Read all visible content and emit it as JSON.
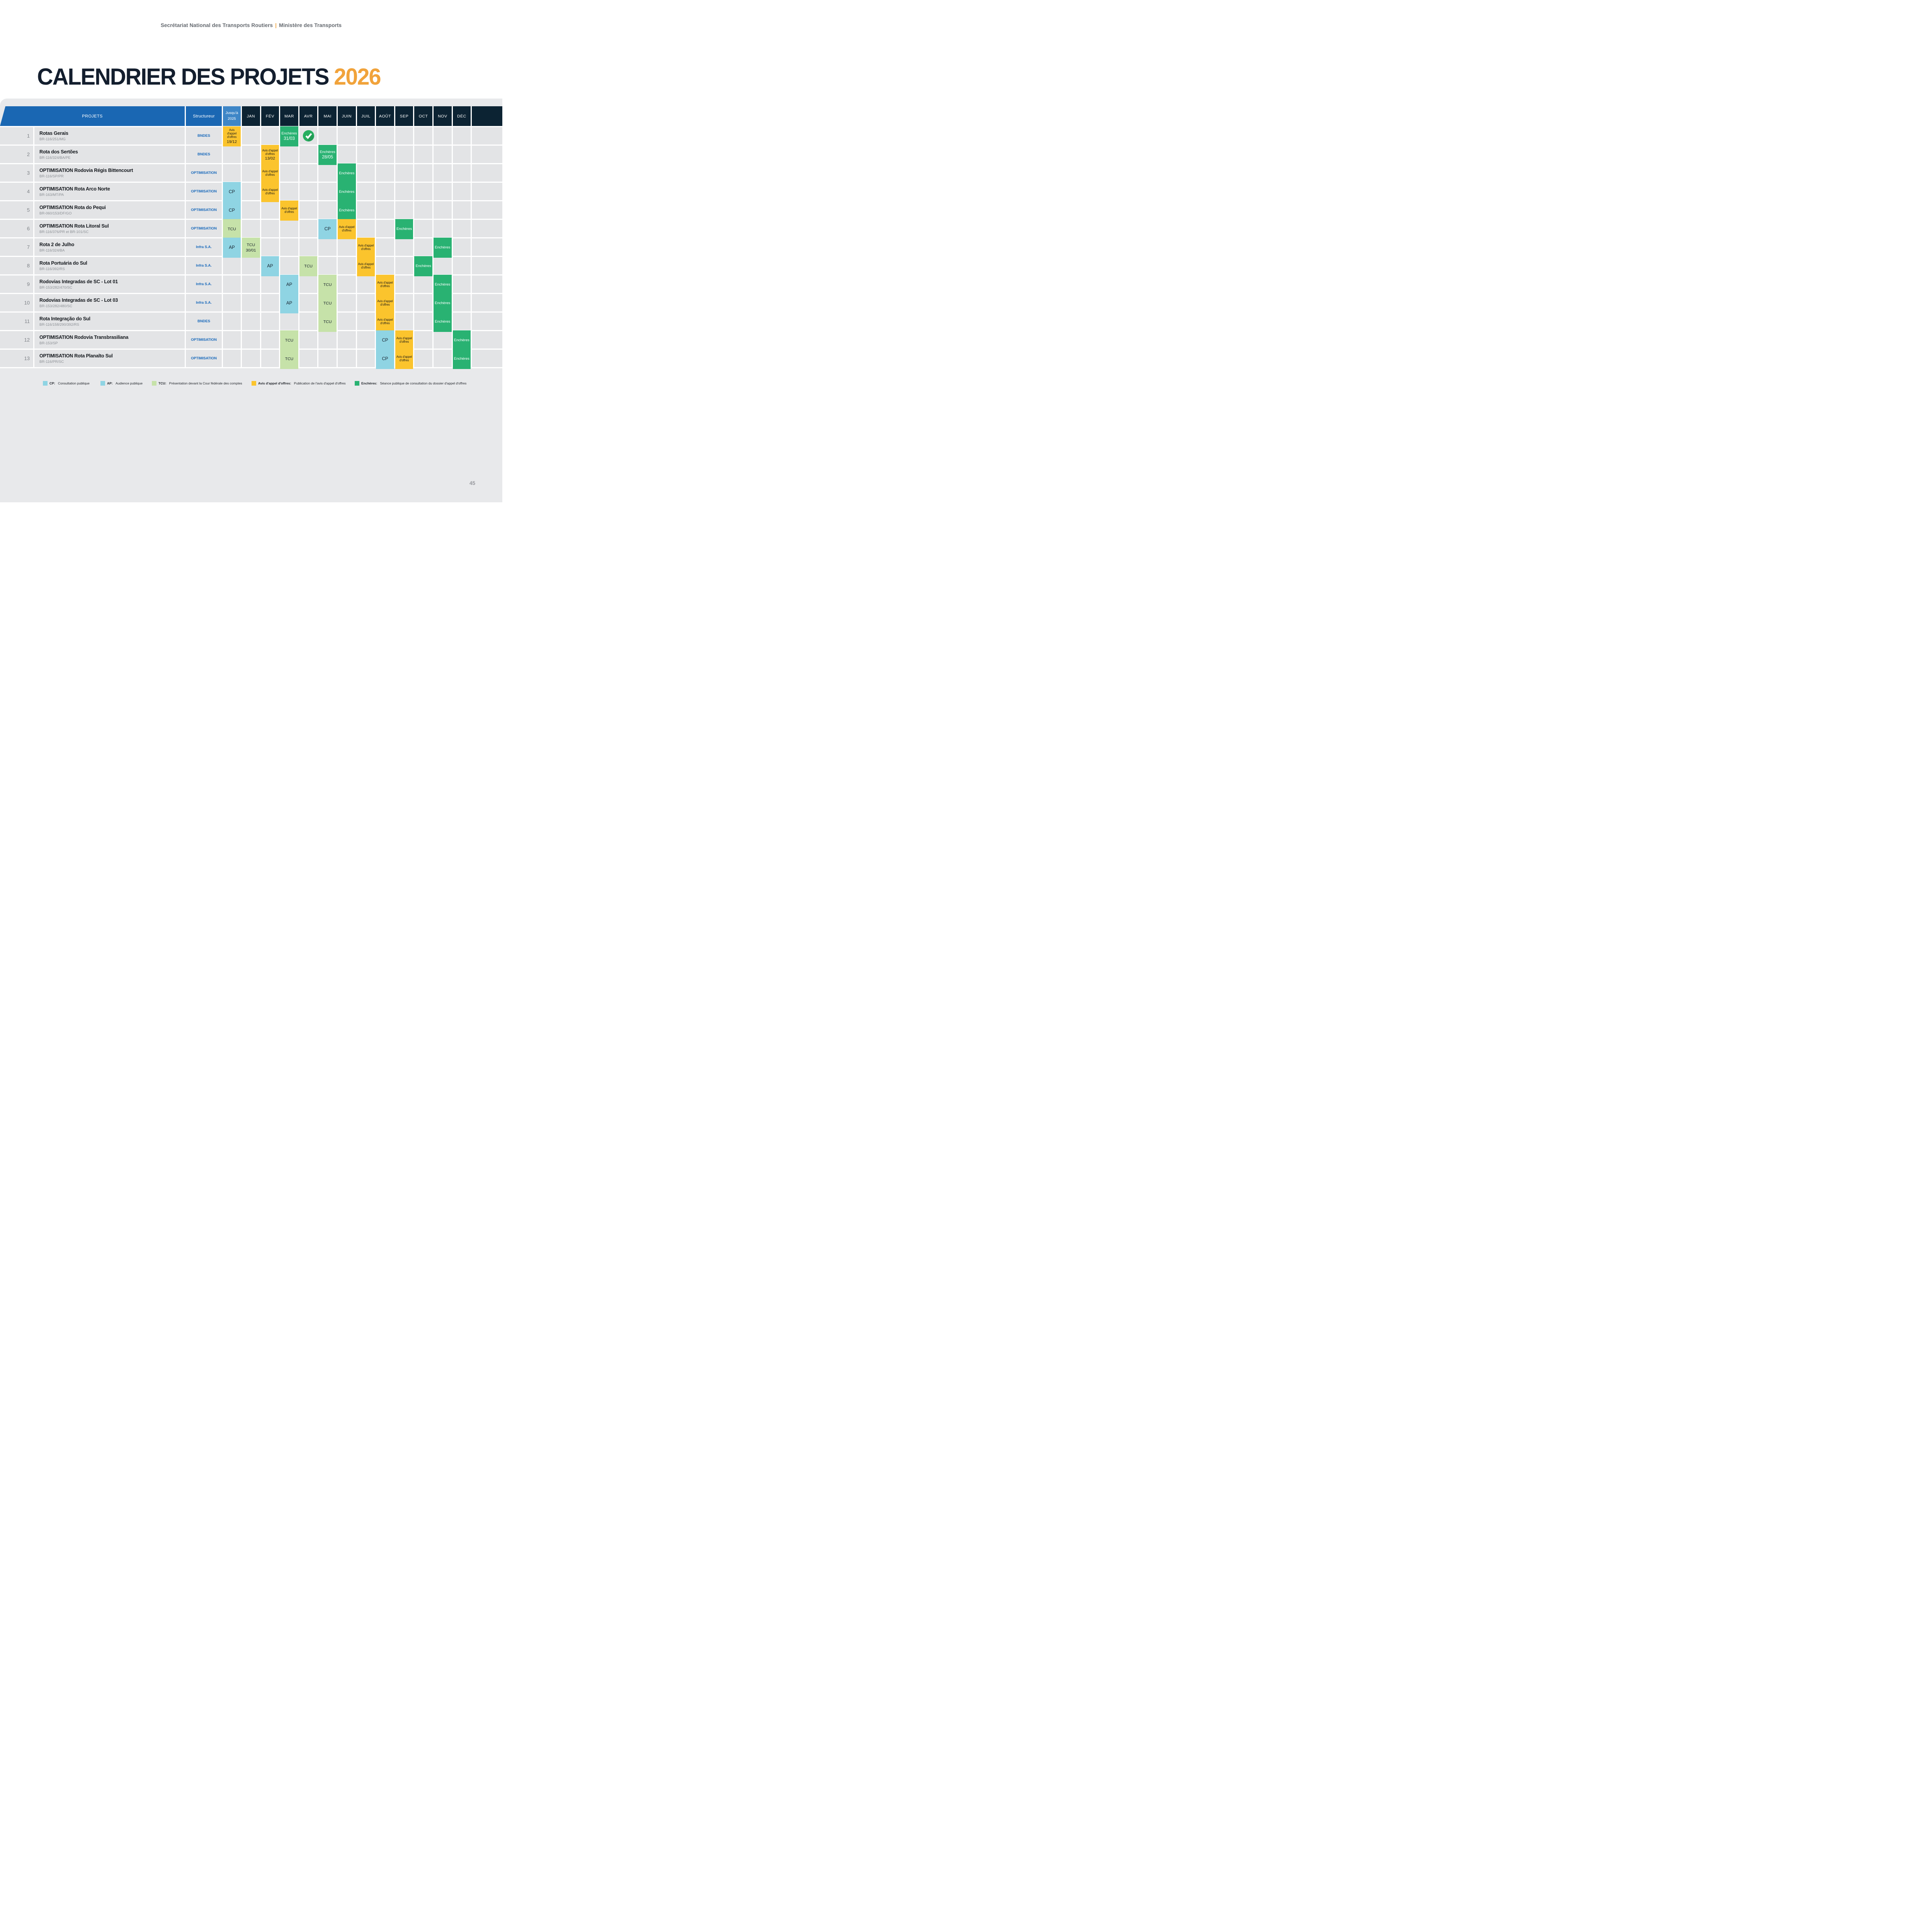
{
  "page": {
    "top_header": {
      "left": "Secrétariat National des Transports Routiers",
      "separator": "|",
      "right": "Ministère des Transports"
    },
    "title": {
      "main": "CALENDRIER DES PROJETS",
      "year": "2026"
    },
    "page_number": "45"
  },
  "colors": {
    "header_blue": "#1A67B3",
    "until_blue": "#3E86C7",
    "month_navy": "#0C2333",
    "row_gray": "#E3E4E6",
    "backdrop_gray": "#E8E9EB",
    "avis_yellow": "#FBC42D",
    "enchere_green": "#29B272",
    "cp_ap_cyan": "#8FD4E3",
    "tcu_green": "#C6E2A9",
    "structurer_text_blue": "#1A6ABB",
    "accent_orange": "#F1A33B",
    "title_navy": "#131E2E"
  },
  "table": {
    "headers": {
      "projects": "PROJETS",
      "structurer": "Structureur",
      "until_line1": "Jusqu'à",
      "until_line2": "2025"
    },
    "months": [
      "JAN",
      "FÉV",
      "MAR",
      "AVR",
      "MAI",
      "JUIN",
      "JUIL",
      "AOÛT",
      "SEP",
      "OCT",
      "NOV",
      "DÉC"
    ],
    "event_labels": {
      "avis": "Avis d'appel d'offres",
      "enchere": "Enchères",
      "cp": "CP",
      "ap": "AP",
      "tcu": "TCU"
    },
    "rows": [
      {
        "num": "1",
        "name": "Rotas Gerais",
        "code": "BR-116/251/MG",
        "structurer": "BNDES",
        "until": {
          "t": "avis",
          "label": "Avis d'appel d'offres",
          "date": "19/12"
        },
        "events": [
          {
            "m": "MAR",
            "t": "enchere",
            "label": "Enchères",
            "date": "31/03"
          },
          {
            "m": "AVR",
            "t": "check"
          }
        ]
      },
      {
        "num": "2",
        "name": "Rota dos Sertões",
        "code": "BR-116/324/BA/PE",
        "structurer": "BNDES",
        "until": null,
        "events": [
          {
            "m": "FÉV",
            "t": "avis",
            "label": "Avis d'appel d'offres",
            "date": "13/02"
          },
          {
            "m": "MAI",
            "t": "enchere",
            "label": "Enchères",
            "date": "28/05"
          }
        ]
      },
      {
        "num": "3",
        "name": "OPTIMISATION Rodovia Régis Bittencourt",
        "code": "BR-116/SP/PR",
        "structurer": "OPTIMISATION",
        "until": null,
        "events": [
          {
            "m": "FÉV",
            "t": "avis",
            "label": "Avis d'appel d'offres"
          },
          {
            "m": "JUIN",
            "t": "enchere",
            "label": "Enchères"
          }
        ]
      },
      {
        "num": "4",
        "name": "OPTIMISATION Rota Arco Norte",
        "code": "BR-163/MT/PA",
        "structurer": "OPTIMISATION",
        "until": {
          "t": "cp",
          "label": "CP"
        },
        "events": [
          {
            "m": "FÉV",
            "t": "avis",
            "label": "Avis d'appel d'offres"
          },
          {
            "m": "JUIN",
            "t": "enchere",
            "label": "Enchères"
          }
        ]
      },
      {
        "num": "5",
        "name": "OPTIMISATION Rota do Pequi",
        "code": "BR-060/153/DF/GO",
        "structurer": "OPTIMISATION",
        "until": {
          "t": "cp",
          "label": "CP"
        },
        "events": [
          {
            "m": "MAR",
            "t": "avis",
            "label": "Avis d'appel d'offres"
          },
          {
            "m": "JUIN",
            "t": "enchere",
            "label": "Enchères"
          }
        ]
      },
      {
        "num": "6",
        "name": "OPTIMISATION Rota Litoral Sul",
        "code": "BR-116/376/PR et BR-101/SC",
        "structurer": "OPTIMISATION",
        "until": {
          "t": "tcu",
          "label": "TCU"
        },
        "events": [
          {
            "m": "MAI",
            "t": "cp",
            "label": "CP"
          },
          {
            "m": "JUIN",
            "t": "avis",
            "label": "Avis d'appel d'offres"
          },
          {
            "m": "SEP",
            "t": "enchere",
            "label": "Enchères"
          }
        ]
      },
      {
        "num": "7",
        "name": "Rota 2 de Julho",
        "code": "BR-116/324/BA",
        "structurer": "Infra S.A.",
        "until": {
          "t": "ap",
          "label": "AP"
        },
        "events": [
          {
            "m": "JAN",
            "t": "tcu",
            "label": "TCU",
            "date": "30/01"
          },
          {
            "m": "JUIL",
            "t": "avis",
            "label": "Avis d'appel d'offres"
          },
          {
            "m": "NOV",
            "t": "enchere",
            "label": "Enchères"
          }
        ]
      },
      {
        "num": "8",
        "name": "Rota Portuária do Sul",
        "code": "BR-116/392/RS",
        "structurer": "Infra S.A.",
        "until": null,
        "events": [
          {
            "m": "FÉV",
            "t": "ap",
            "label": "AP"
          },
          {
            "m": "AVR",
            "t": "tcu",
            "label": "TCU"
          },
          {
            "m": "JUIL",
            "t": "avis",
            "label": "Avis d'appel d'offres"
          },
          {
            "m": "OCT",
            "t": "enchere",
            "label": "Enchères"
          }
        ]
      },
      {
        "num": "9",
        "name": "Rodovias Integradas de SC - Lot 01",
        "code": "BR-153/282/470/SC",
        "structurer": "Infra S.A.",
        "until": null,
        "events": [
          {
            "m": "MAR",
            "t": "ap",
            "label": "AP"
          },
          {
            "m": "MAI",
            "t": "tcu",
            "label": "TCU"
          },
          {
            "m": "AOÛT",
            "t": "avis",
            "label": "Avis d'appel d'offres"
          },
          {
            "m": "NOV",
            "t": "enchere",
            "label": "Enchères"
          }
        ]
      },
      {
        "num": "10",
        "name": "Rodovias Integradas de SC - Lot 03",
        "code": "BR-153/282/480/SC",
        "structurer": "Infra S.A.",
        "until": null,
        "events": [
          {
            "m": "MAR",
            "t": "ap",
            "label": "AP"
          },
          {
            "m": "MAI",
            "t": "tcu",
            "label": "TCU"
          },
          {
            "m": "AOÛT",
            "t": "avis",
            "label": "Avis d'appel d'offres"
          },
          {
            "m": "NOV",
            "t": "enchere",
            "label": "Enchères"
          }
        ]
      },
      {
        "num": "11",
        "name": "Rota Integração do Sul",
        "code": "BR-116/158/290/392/RS",
        "structurer": "BNDES",
        "until": null,
        "events": [
          {
            "m": "MAI",
            "t": "tcu",
            "label": "TCU"
          },
          {
            "m": "AOÛT",
            "t": "avis",
            "label": "Avis d'appel d'offres"
          },
          {
            "m": "NOV",
            "t": "enchere",
            "label": "Enchères"
          }
        ]
      },
      {
        "num": "12",
        "name": "OPTIMISATION Rodovia Transbrasiliana",
        "code": "BR-153/SP",
        "structurer": "OPTIMISATION",
        "until": null,
        "events": [
          {
            "m": "MAR",
            "t": "tcu",
            "label": "TCU"
          },
          {
            "m": "AOÛT",
            "t": "cp",
            "label": "CP"
          },
          {
            "m": "SEP",
            "t": "avis",
            "label": "Avis d'appel d'offres"
          },
          {
            "m": "DÉC",
            "t": "enchere",
            "label": "Enchères"
          }
        ]
      },
      {
        "num": "13",
        "name": "OPTIMISATION Rota Planalto Sul",
        "code": "BR-116/PR/SC",
        "structurer": "OPTIMISATION",
        "until": null,
        "events": [
          {
            "m": "MAR",
            "t": "tcu",
            "label": "TCU"
          },
          {
            "m": "AOÛT",
            "t": "cp",
            "label": "CP"
          },
          {
            "m": "SEP",
            "t": "avis",
            "label": "Avis d'appel d'offres"
          },
          {
            "m": "DÉC",
            "t": "enchere",
            "label": "Enchères"
          }
        ]
      }
    ]
  },
  "legend": [
    {
      "t": "cp",
      "abbr": "CP:",
      "text": "Consultation publique"
    },
    {
      "t": "ap",
      "abbr": "AP:",
      "text": "Audience publique"
    },
    {
      "t": "tcu",
      "abbr": "TCU:",
      "text": "Présentation devant la Cour fédérale des comptes"
    },
    {
      "t": "avis",
      "abbr": "Avis d'appel d'offres:",
      "text": "Publication de l'avis d'appel d'offres"
    },
    {
      "t": "enchere",
      "abbr": "Enchères:",
      "text": "Séance publique de consultation du dossier d'appel d'offres"
    }
  ]
}
